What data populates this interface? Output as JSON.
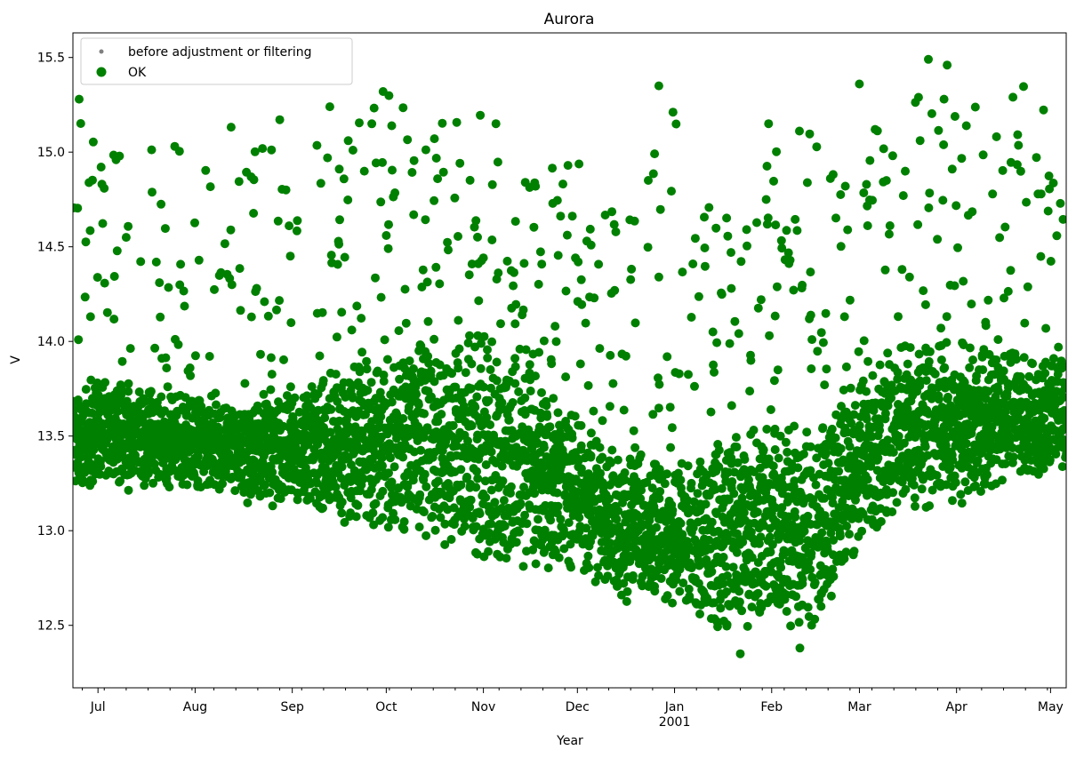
{
  "chart_data": {
    "type": "scatter",
    "title": "Aurora",
    "xlabel": "Year",
    "ylabel": "V",
    "x_range": [
      "2000-06-23",
      "2001-05-06"
    ],
    "ylim": [
      12.17,
      15.63
    ],
    "yticks": [
      12.5,
      13.0,
      13.5,
      14.0,
      14.5,
      15.0,
      15.5
    ],
    "ytick_labels": [
      "12.5",
      "13.0",
      "13.5",
      "14.0",
      "14.5",
      "15.0",
      "15.5"
    ],
    "xticks": [
      {
        "date": "2000-07-01",
        "label": "Jul",
        "sublabel": ""
      },
      {
        "date": "2000-08-01",
        "label": "Aug",
        "sublabel": ""
      },
      {
        "date": "2000-09-01",
        "label": "Sep",
        "sublabel": ""
      },
      {
        "date": "2000-10-01",
        "label": "Oct",
        "sublabel": ""
      },
      {
        "date": "2000-11-01",
        "label": "Nov",
        "sublabel": ""
      },
      {
        "date": "2000-12-01",
        "label": "Dec",
        "sublabel": ""
      },
      {
        "date": "2001-01-01",
        "label": "Jan",
        "sublabel": "2001"
      },
      {
        "date": "2001-02-01",
        "label": "Feb",
        "sublabel": ""
      },
      {
        "date": "2001-03-01",
        "label": "Mar",
        "sublabel": ""
      },
      {
        "date": "2001-04-01",
        "label": "Apr",
        "sublabel": ""
      },
      {
        "date": "2001-05-01",
        "label": "May",
        "sublabel": ""
      }
    ],
    "minor_ticks": "weekly",
    "grid": false,
    "legend_position": "top-left",
    "series": [
      {
        "name": "before adjustment or filtering",
        "color": "#808080",
        "marker": "small-dot",
        "points": []
      },
      {
        "name": "OK",
        "color": "#008000",
        "marker": "large-dot",
        "envelope": {
          "description": "dense daily cloud of points; lower and upper bounds of the bulk band, sampled by date",
          "dates": [
            "2000-06-23",
            "2000-07-01",
            "2000-07-15",
            "2000-08-01",
            "2000-08-15",
            "2000-09-01",
            "2000-09-15",
            "2000-10-01",
            "2000-10-15",
            "2000-11-01",
            "2000-11-15",
            "2000-12-01",
            "2000-12-15",
            "2001-01-01",
            "2001-01-15",
            "2001-02-01",
            "2001-02-15",
            "2001-03-01",
            "2001-03-15",
            "2001-04-01",
            "2001-04-15",
            "2001-05-06"
          ],
          "low": [
            13.2,
            13.25,
            13.25,
            13.22,
            13.2,
            13.15,
            13.05,
            13.0,
            12.95,
            12.85,
            12.8,
            12.8,
            12.65,
            12.6,
            12.45,
            12.5,
            12.4,
            12.95,
            13.1,
            13.15,
            13.25,
            13.3
          ],
          "high": [
            13.7,
            13.8,
            13.75,
            13.7,
            13.65,
            13.7,
            13.85,
            13.95,
            14.0,
            14.05,
            13.9,
            13.6,
            13.4,
            13.35,
            13.5,
            13.6,
            13.55,
            13.8,
            14.0,
            14.0,
            13.95,
            13.9
          ],
          "spread_max": [
            15.28,
            15.1,
            15.05,
            15.1,
            15.15,
            15.2,
            15.25,
            15.32,
            15.25,
            15.2,
            14.85,
            15.02,
            14.6,
            15.35,
            14.6,
            15.15,
            15.1,
            15.0,
            15.36,
            15.3,
            15.45,
            15.25
          ]
        },
        "notable_points": [
          {
            "x": "2000-06-25",
            "y": 15.28
          },
          {
            "x": "2000-09-13",
            "y": 15.24
          },
          {
            "x": "2000-09-30",
            "y": 15.32
          },
          {
            "x": "2000-11-05",
            "y": 15.15
          },
          {
            "x": "2000-11-28",
            "y": 14.93
          },
          {
            "x": "2000-12-27",
            "y": 15.35
          },
          {
            "x": "2000-12-27",
            "y": 14.34
          },
          {
            "x": "2001-01-31",
            "y": 15.15
          },
          {
            "x": "2001-03-01",
            "y": 15.36
          },
          {
            "x": "2001-03-23",
            "y": 15.49
          },
          {
            "x": "2001-03-29",
            "y": 15.46
          },
          {
            "x": "2001-04-19",
            "y": 15.29
          },
          {
            "x": "2001-01-22",
            "y": 12.35
          },
          {
            "x": "2001-02-10",
            "y": 12.38
          }
        ]
      }
    ]
  }
}
